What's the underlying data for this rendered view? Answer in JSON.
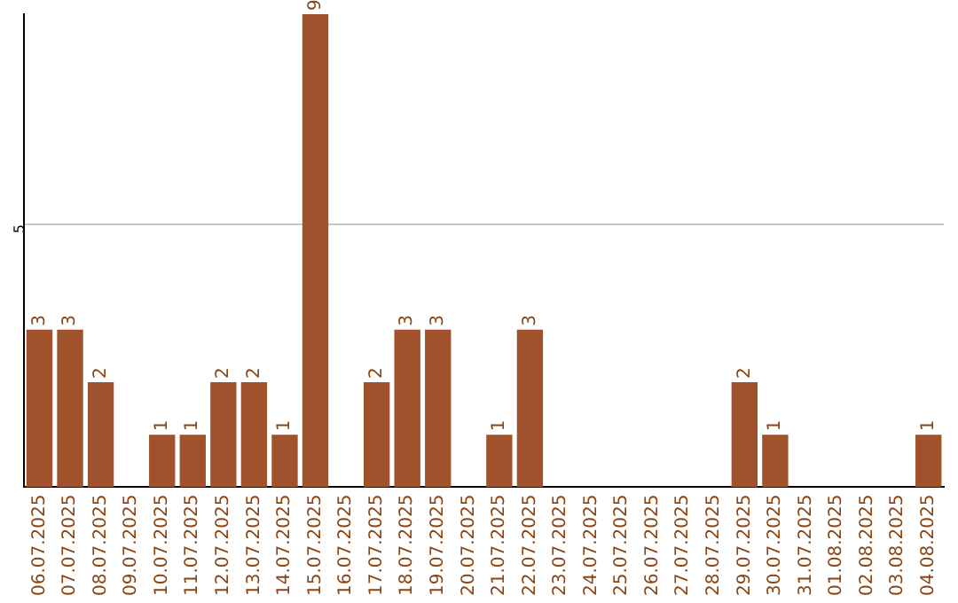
{
  "chart_data": {
    "type": "bar",
    "categories": [
      "06.07.2025",
      "07.07.2025",
      "08.07.2025",
      "09.07.2025",
      "10.07.2025",
      "11.07.2025",
      "12.07.2025",
      "13.07.2025",
      "14.07.2025",
      "15.07.2025",
      "16.07.2025",
      "17.07.2025",
      "18.07.2025",
      "19.07.2025",
      "20.07.2025",
      "21.07.2025",
      "22.07.2025",
      "23.07.2025",
      "24.07.2025",
      "25.07.2025",
      "26.07.2025",
      "27.07.2025",
      "28.07.2025",
      "29.07.2025",
      "30.07.2025",
      "31.07.2025",
      "01.08.2025",
      "02.08.2025",
      "03.08.2025",
      "04.08.2025"
    ],
    "values": [
      3,
      3,
      2,
      0,
      1,
      1,
      2,
      2,
      1,
      9,
      0,
      2,
      3,
      3,
      0,
      1,
      3,
      0,
      0,
      0,
      0,
      0,
      0,
      2,
      1,
      0,
      0,
      0,
      0,
      1
    ],
    "value_labels": [
      "3",
      "3",
      "2",
      null,
      "1",
      "1",
      "2",
      "2",
      "1",
      "9",
      null,
      "2",
      "3",
      "3",
      null,
      "1",
      "3",
      null,
      null,
      null,
      null,
      null,
      null,
      "2",
      "1",
      null,
      null,
      null,
      null,
      "1"
    ],
    "color": "#a0522d",
    "ylim": [
      0,
      9
    ],
    "yticks": [
      5
    ],
    "grid": "y",
    "legend": false
  }
}
